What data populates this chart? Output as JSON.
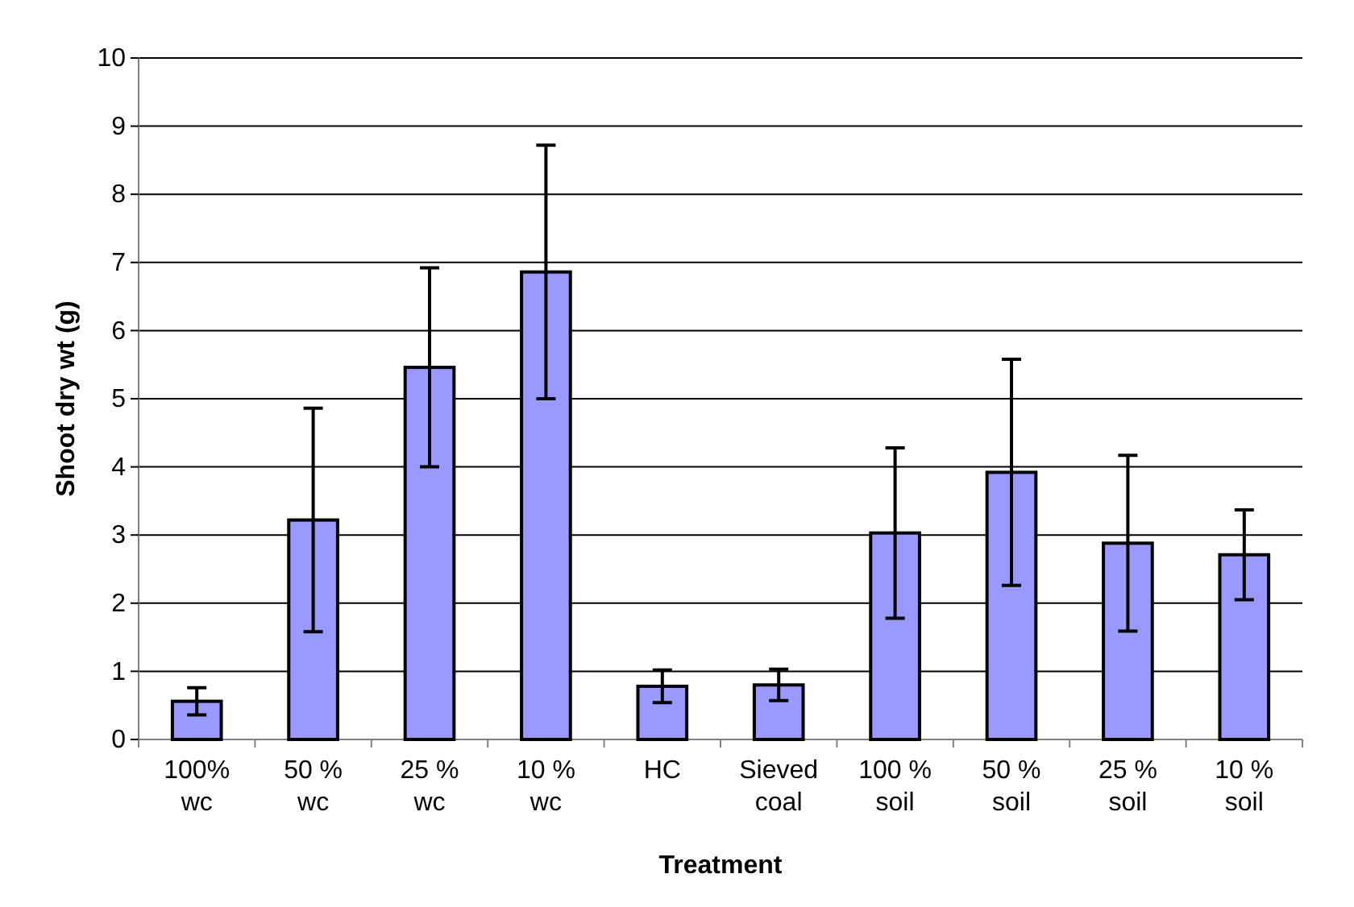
{
  "chart_data": {
    "type": "bar",
    "xlabel": "Treatment",
    "ylabel": "Shoot dry wt (g)",
    "categories": [
      "100% wc",
      "50 % wc",
      "25 % wc",
      "10 % wc",
      "HC",
      "Sieved coal",
      "100 % soil",
      "50 % soil",
      "25 % soil",
      "10 % soil"
    ],
    "values": [
      0.56,
      3.22,
      5.46,
      6.86,
      0.78,
      0.8,
      3.03,
      3.92,
      2.88,
      2.71
    ],
    "errors": [
      0.2,
      1.64,
      1.46,
      1.86,
      0.24,
      0.23,
      1.25,
      1.66,
      1.29,
      0.66
    ],
    "color": "#9999ff",
    "ylim": [
      0,
      10
    ],
    "yticks": [
      0,
      1,
      2,
      3,
      4,
      5,
      6,
      7,
      8,
      9,
      10
    ],
    "grid": "y"
  }
}
